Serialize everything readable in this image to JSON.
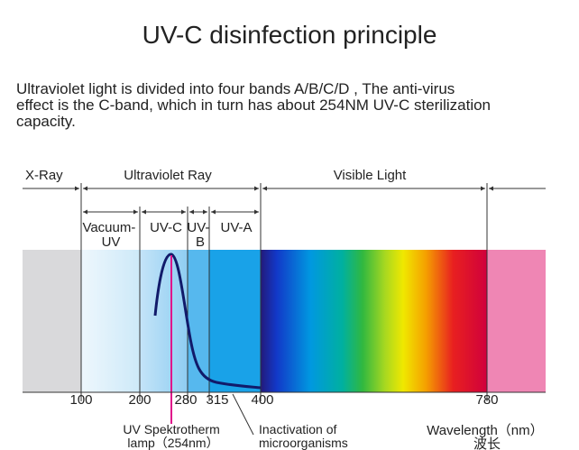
{
  "title": "UV-C disinfection principle",
  "description": [
    "Ultraviolet light is divided into four bands  A/B/C/D , The anti-virus",
    "effect is the C-band, which in turn has about 254NM UV-C sterilization",
    "capacity."
  ],
  "regions": [
    "X-Ray",
    "Ultraviolet Ray",
    "Visible Light"
  ],
  "bands": [
    [
      "Vacuum-",
      "UV"
    ],
    [
      "UV-C"
    ],
    [
      "UV-",
      "B"
    ],
    [
      "UV-A"
    ]
  ],
  "ticks": [
    "100",
    "200",
    "280",
    "315",
    "400",
    "780"
  ],
  "annotations": {
    "lamp": [
      "UV Spektrotherm",
      "lamp（254nm）"
    ],
    "inactivation": [
      "Inactivation  of",
      "microorganisms"
    ],
    "axis": [
      "Wavelength（nm）",
      "波长"
    ]
  }
}
